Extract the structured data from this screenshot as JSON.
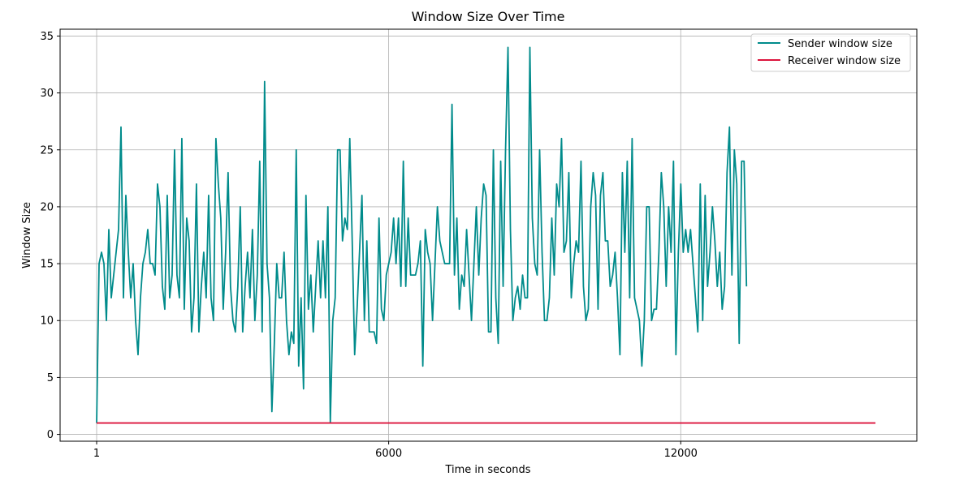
{
  "chart_data": {
    "type": "line",
    "title": "Window Size Over Time",
    "xlabel": "Time in seconds",
    "ylabel": "Window Size",
    "xlim": [
      -750,
      16850
    ],
    "ylim": [
      -0.6,
      35.6
    ],
    "xticks": [
      1,
      6000,
      12000
    ],
    "xtick_labels": [
      "1",
      "6000",
      "12000"
    ],
    "yticks": [
      0,
      5,
      10,
      15,
      20,
      25,
      30,
      35
    ],
    "ytick_labels": [
      "0",
      "5",
      "10",
      "15",
      "20",
      "25",
      "30",
      "35"
    ],
    "grid": true,
    "legend_position": "upper right",
    "x_start": 1,
    "x_step": 50,
    "series": [
      {
        "name": "Sender window size",
        "color": "#008b8b",
        "values": [
          1,
          15,
          16,
          15,
          10,
          18,
          12,
          14,
          16,
          18,
          27,
          12,
          21,
          16,
          12,
          15,
          10,
          7,
          12,
          15,
          16,
          18,
          15,
          15,
          14,
          22,
          20,
          13,
          11,
          21,
          12,
          14,
          25,
          14,
          12,
          26,
          11,
          19,
          17,
          9,
          12,
          22,
          9,
          13,
          16,
          12,
          21,
          12,
          10,
          26,
          22,
          19,
          11,
          16,
          23,
          13,
          10,
          9,
          13,
          20,
          9,
          13,
          16,
          12,
          18,
          10,
          14,
          24,
          9,
          31,
          15,
          12,
          2,
          8,
          15,
          12,
          12,
          16,
          10,
          7,
          9,
          8,
          25,
          6,
          12,
          4,
          21,
          11,
          14,
          9,
          13,
          17,
          12,
          17,
          12,
          20,
          1,
          10,
          12,
          25,
          25,
          17,
          19,
          18,
          26,
          17,
          7,
          11,
          16,
          21,
          10,
          17,
          9,
          9,
          9,
          8,
          19,
          11,
          10,
          14,
          15,
          16,
          19,
          15,
          19,
          13,
          24,
          13,
          19,
          14,
          14,
          14,
          15,
          17,
          6,
          18,
          16,
          15,
          10,
          15,
          20,
          17,
          16,
          15,
          15,
          15,
          29,
          14,
          19,
          11,
          14,
          13,
          18,
          14,
          10,
          15,
          20,
          14,
          19,
          22,
          21,
          9,
          9,
          25,
          12,
          8,
          24,
          13,
          25,
          34,
          18,
          10,
          12,
          13,
          11,
          14,
          12,
          12,
          34,
          19,
          15,
          14,
          25,
          16,
          10,
          10,
          12,
          19,
          14,
          22,
          20,
          26,
          16,
          17,
          23,
          12,
          15,
          17,
          16,
          24,
          13,
          10,
          11,
          20,
          23,
          21,
          11,
          21,
          23,
          17,
          17,
          13,
          14,
          16,
          12,
          7,
          23,
          16,
          24,
          12,
          26,
          12,
          11,
          10,
          6,
          10,
          20,
          20,
          10,
          11,
          11,
          16,
          23,
          20,
          13,
          20,
          16,
          24,
          7,
          16,
          22,
          16,
          18,
          16,
          18,
          15,
          12,
          9,
          22,
          10,
          21,
          13,
          16,
          20,
          17,
          13,
          16,
          11,
          13,
          23,
          27,
          14,
          25,
          22,
          8,
          24,
          24,
          13
        ],
        "values_note_removed": false
      },
      {
        "name": "Receiver window size",
        "color": "#dc143c",
        "x": [
          1,
          16000
        ],
        "values": [
          1,
          1
        ]
      }
    ]
  }
}
